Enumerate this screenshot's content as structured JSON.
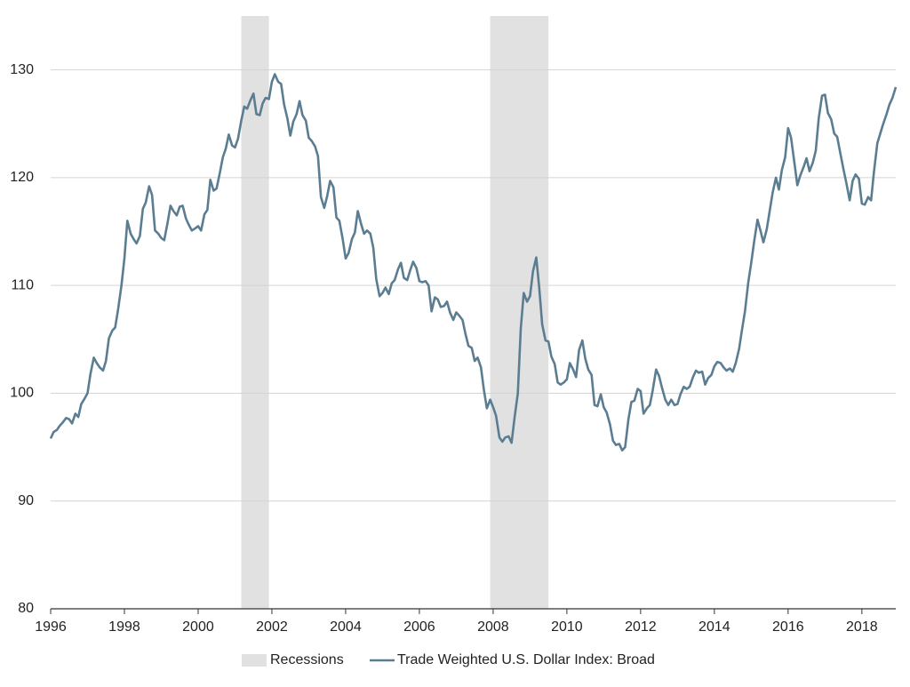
{
  "chart_data": {
    "type": "line",
    "x": [
      1996,
      1996.08,
      1996.17,
      1996.25,
      1996.33,
      1996.42,
      1996.5,
      1996.58,
      1996.67,
      1996.75,
      1996.83,
      1996.92,
      1997,
      1997.08,
      1997.17,
      1997.25,
      1997.33,
      1997.42,
      1997.5,
      1997.58,
      1997.67,
      1997.75,
      1997.83,
      1997.92,
      1998,
      1998.08,
      1998.17,
      1998.25,
      1998.33,
      1998.42,
      1998.5,
      1998.58,
      1998.67,
      1998.75,
      1998.83,
      1998.92,
      1999,
      1999.08,
      1999.17,
      1999.25,
      1999.33,
      1999.42,
      1999.5,
      1999.58,
      1999.67,
      1999.75,
      1999.83,
      1999.92,
      2000,
      2000.08,
      2000.17,
      2000.25,
      2000.33,
      2000.42,
      2000.5,
      2000.58,
      2000.67,
      2000.75,
      2000.83,
      2000.92,
      2001,
      2001.08,
      2001.17,
      2001.25,
      2001.33,
      2001.42,
      2001.5,
      2001.58,
      2001.67,
      2001.75,
      2001.83,
      2001.92,
      2002,
      2002.08,
      2002.17,
      2002.25,
      2002.33,
      2002.42,
      2002.5,
      2002.58,
      2002.67,
      2002.75,
      2002.83,
      2002.92,
      2003,
      2003.08,
      2003.17,
      2003.25,
      2003.33,
      2003.42,
      2003.5,
      2003.58,
      2003.67,
      2003.75,
      2003.83,
      2003.92,
      2004,
      2004.08,
      2004.17,
      2004.25,
      2004.33,
      2004.42,
      2004.5,
      2004.58,
      2004.67,
      2004.75,
      2004.83,
      2004.92,
      2005,
      2005.08,
      2005.17,
      2005.25,
      2005.33,
      2005.42,
      2005.5,
      2005.58,
      2005.67,
      2005.75,
      2005.83,
      2005.92,
      2006,
      2006.08,
      2006.17,
      2006.25,
      2006.33,
      2006.42,
      2006.5,
      2006.58,
      2006.67,
      2006.75,
      2006.83,
      2006.92,
      2007,
      2007.08,
      2007.17,
      2007.25,
      2007.33,
      2007.42,
      2007.5,
      2007.58,
      2007.67,
      2007.75,
      2007.83,
      2007.92,
      2008,
      2008.08,
      2008.17,
      2008.25,
      2008.33,
      2008.42,
      2008.5,
      2008.58,
      2008.67,
      2008.75,
      2008.83,
      2008.92,
      2009,
      2009.08,
      2009.17,
      2009.25,
      2009.33,
      2009.42,
      2009.5,
      2009.58,
      2009.67,
      2009.75,
      2009.83,
      2009.92,
      2010,
      2010.08,
      2010.17,
      2010.25,
      2010.33,
      2010.42,
      2010.5,
      2010.58,
      2010.67,
      2010.75,
      2010.83,
      2010.92,
      2011,
      2011.08,
      2011.17,
      2011.25,
      2011.33,
      2011.42,
      2011.5,
      2011.58,
      2011.67,
      2011.75,
      2011.83,
      2011.92,
      2012,
      2012.08,
      2012.17,
      2012.25,
      2012.33,
      2012.42,
      2012.5,
      2012.58,
      2012.67,
      2012.75,
      2012.83,
      2012.92,
      2013,
      2013.08,
      2013.17,
      2013.25,
      2013.33,
      2013.42,
      2013.5,
      2013.58,
      2013.67,
      2013.75,
      2013.83,
      2013.92,
      2014,
      2014.08,
      2014.17,
      2014.25,
      2014.33,
      2014.42,
      2014.5,
      2014.58,
      2014.67,
      2014.75,
      2014.83,
      2014.92,
      2015,
      2015.08,
      2015.17,
      2015.25,
      2015.33,
      2015.42,
      2015.5,
      2015.58,
      2015.67,
      2015.75,
      2015.83,
      2015.92,
      2016,
      2016.08,
      2016.17,
      2016.25,
      2016.33,
      2016.42,
      2016.5,
      2016.58,
      2016.67,
      2016.75,
      2016.83,
      2016.92,
      2017,
      2017.08,
      2017.17,
      2017.25,
      2017.33,
      2017.42,
      2017.5,
      2017.58,
      2017.67,
      2017.75,
      2017.83,
      2017.92,
      2018,
      2018.08,
      2018.17,
      2018.25,
      2018.33,
      2018.42,
      2018.5,
      2018.58,
      2018.67,
      2018.75,
      2018.83,
      2018.92
    ],
    "series": [
      {
        "name": "Trade Weighted U.S. Dollar Index: Broad",
        "color": "#5b7d92",
        "values": [
          95.8,
          96.4,
          96.6,
          97.0,
          97.3,
          97.7,
          97.6,
          97.2,
          98.1,
          97.8,
          99.0,
          99.5,
          100.0,
          101.8,
          103.3,
          102.8,
          102.4,
          102.1,
          103.0,
          105.1,
          105.8,
          106.1,
          107.8,
          110.0,
          112.5,
          116.0,
          114.8,
          114.3,
          113.9,
          114.6,
          117.1,
          117.7,
          119.2,
          118.4,
          115.1,
          114.8,
          114.4,
          114.2,
          115.8,
          117.4,
          116.9,
          116.5,
          117.3,
          117.4,
          116.2,
          115.6,
          115.1,
          115.3,
          115.5,
          115.1,
          116.6,
          117.0,
          119.8,
          118.8,
          119.0,
          120.3,
          121.9,
          122.7,
          124.0,
          123.0,
          122.8,
          123.6,
          125.3,
          126.6,
          126.4,
          127.2,
          127.8,
          125.9,
          125.8,
          126.9,
          127.4,
          127.3,
          128.9,
          129.6,
          128.9,
          128.7,
          126.8,
          125.5,
          123.9,
          125.2,
          125.9,
          127.1,
          125.8,
          125.3,
          123.7,
          123.4,
          122.9,
          122.0,
          118.2,
          117.2,
          118.3,
          119.7,
          119.1,
          116.3,
          116.0,
          114.3,
          112.5,
          113.0,
          114.3,
          114.9,
          116.9,
          115.7,
          114.8,
          115.1,
          114.8,
          113.5,
          110.6,
          109.0,
          109.3,
          109.8,
          109.2,
          110.2,
          110.5,
          111.5,
          112.1,
          110.7,
          110.5,
          111.4,
          112.2,
          111.6,
          110.4,
          110.3,
          110.4,
          110.0,
          107.6,
          108.9,
          108.7,
          108.0,
          108.1,
          108.5,
          107.5,
          106.8,
          107.5,
          107.2,
          106.8,
          105.5,
          104.4,
          104.2,
          103.0,
          103.3,
          102.4,
          100.3,
          98.6,
          99.4,
          98.7,
          97.9,
          95.9,
          95.5,
          95.9,
          96.0,
          95.4,
          97.7,
          100.0,
          106.0,
          109.3,
          108.5,
          109.0,
          111.3,
          112.6,
          109.8,
          106.4,
          104.9,
          104.8,
          103.4,
          102.7,
          101.0,
          100.8,
          101.0,
          101.3,
          102.8,
          102.2,
          101.5,
          104.0,
          104.9,
          103.2,
          102.2,
          101.7,
          98.9,
          98.8,
          99.9,
          98.7,
          98.2,
          97.1,
          95.6,
          95.2,
          95.3,
          94.7,
          95.0,
          97.6,
          99.2,
          99.3,
          100.4,
          100.2,
          98.1,
          98.6,
          98.9,
          100.3,
          102.2,
          101.6,
          100.5,
          99.4,
          98.9,
          99.4,
          98.9,
          99.0,
          99.9,
          100.6,
          100.4,
          100.6,
          101.5,
          102.1,
          101.9,
          102.0,
          100.8,
          101.4,
          101.7,
          102.5,
          102.9,
          102.8,
          102.4,
          102.1,
          102.3,
          102.0,
          102.8,
          104.1,
          105.9,
          107.6,
          110.3,
          112.1,
          114.1,
          116.1,
          115.1,
          114.0,
          115.2,
          116.9,
          118.6,
          120.0,
          118.9,
          120.7,
          121.9,
          124.6,
          123.7,
          121.4,
          119.3,
          120.2,
          121.0,
          121.8,
          120.6,
          121.4,
          122.5,
          125.5,
          127.6,
          127.7,
          126.0,
          125.4,
          124.1,
          123.8,
          122.2,
          120.8,
          119.5,
          117.9,
          119.7,
          120.3,
          119.9,
          117.6,
          117.5,
          118.2,
          117.9,
          120.6,
          123.2,
          124.1,
          125.0,
          125.9,
          126.8,
          127.4,
          128.4
        ]
      }
    ],
    "recessions": {
      "name": "Recessions",
      "color": "#e1e1e1",
      "periods": [
        [
          2001.17,
          2001.92
        ],
        [
          2007.92,
          2009.5
        ]
      ]
    },
    "xlim": [
      1996,
      2018.92
    ],
    "xticks": [
      1996,
      1998,
      2000,
      2002,
      2004,
      2006,
      2008,
      2010,
      2012,
      2014,
      2016,
      2018
    ],
    "ylim": [
      80,
      135
    ],
    "yticks": [
      80,
      90,
      100,
      110,
      120,
      130
    ],
    "grid": true
  }
}
